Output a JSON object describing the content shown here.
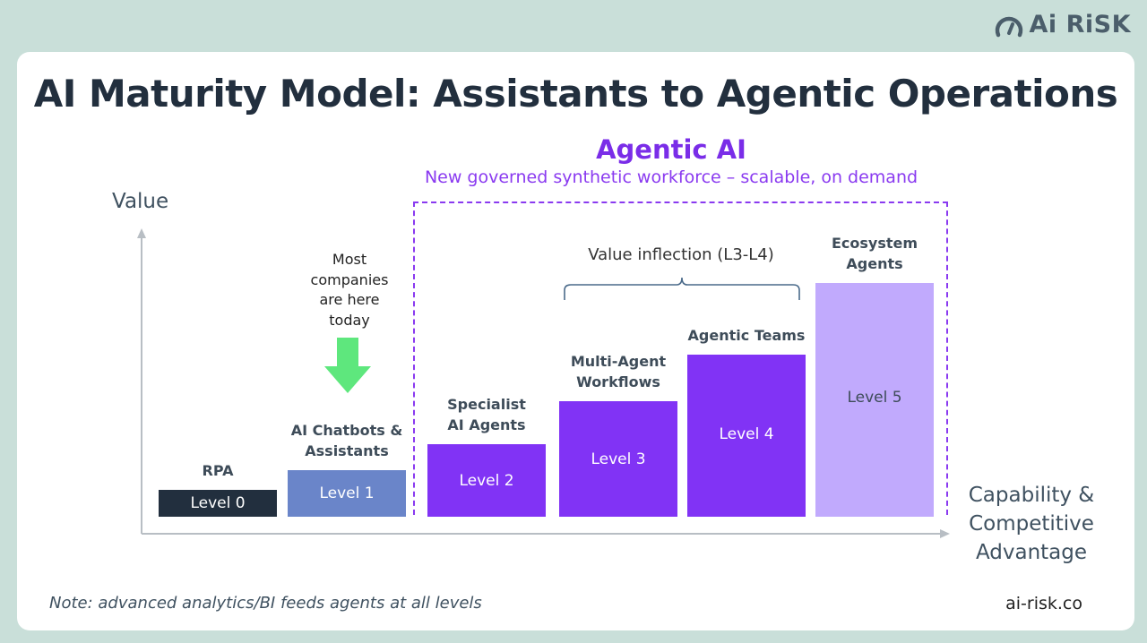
{
  "brand": {
    "name": "Ai RiSK",
    "icon": "gauge-icon"
  },
  "title": "AI Maturity Model: Assistants to Agentic Operations",
  "agentic": {
    "title": "Agentic AI",
    "subtitle": "New governed synthetic workforce – scalable, on demand"
  },
  "axes": {
    "y_label": "Value",
    "x_label": [
      "Capability &",
      "Competitive",
      "Advantage"
    ]
  },
  "callout": {
    "most_here": [
      "Most",
      "companies",
      "are here",
      "today"
    ],
    "arrow_color": "#5ee77d"
  },
  "inflection": "Value inflection (L3-L4)",
  "footnote": "Note: advanced analytics/BI feeds agents at all levels",
  "site": "ai-risk.co",
  "colors": {
    "level0": "#222f3e",
    "level1": "#6a85c9",
    "agentic": "#8133f5",
    "level5": "#c1aafd",
    "dash": "#8a3af0",
    "background": "#c9dfd9"
  },
  "chart_data": {
    "type": "bar",
    "categories": [
      "Level 0",
      "Level 1",
      "Level 2",
      "Level 3",
      "Level 4",
      "Level 5"
    ],
    "labels": [
      [
        "RPA"
      ],
      [
        "AI Chatbots &",
        "Assistants"
      ],
      [
        "Specialist",
        "AI Agents"
      ],
      [
        "Multi-Agent",
        "Workflows"
      ],
      [
        "Agentic Teams"
      ],
      [
        "Ecosystem",
        "Agents"
      ]
    ],
    "values": [
      1,
      2,
      3,
      5,
      7,
      10
    ],
    "xlabel": "Capability & Competitive Advantage",
    "ylabel": "Value"
  }
}
